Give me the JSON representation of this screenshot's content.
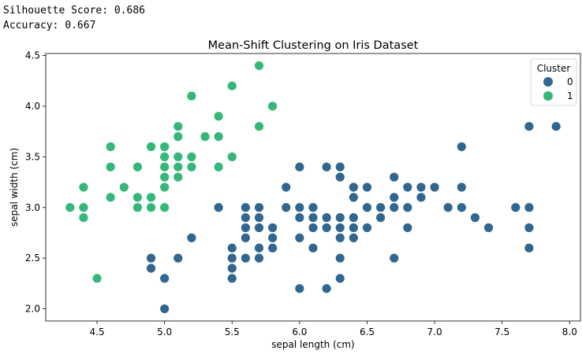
{
  "console": {
    "silhouette": "Silhouette Score: 0.686",
    "accuracy": "Accuracy: 0.667"
  },
  "colors": {
    "cluster_0": "#31678e",
    "cluster_1": "#35b779"
  },
  "chart_data": {
    "type": "scatter",
    "title": "Mean-Shift Clustering on Iris Dataset",
    "xlabel": "sepal length (cm)",
    "ylabel": "sepal width (cm)",
    "xlim": [
      4.12,
      8.08
    ],
    "ylim": [
      1.88,
      4.52
    ],
    "xticks": [
      "4.5",
      "5.0",
      "5.5",
      "6.0",
      "6.5",
      "7.0",
      "7.5",
      "8.0"
    ],
    "yticks": [
      "2.0",
      "2.5",
      "3.0",
      "3.5",
      "4.0",
      "4.5"
    ],
    "grid": false,
    "legend": {
      "title": "Cluster",
      "placement": "top-right",
      "entries": [
        "0",
        "1"
      ]
    },
    "series": [
      {
        "name": "0",
        "color": "#31678e",
        "points": [
          [
            7.0,
            3.2
          ],
          [
            6.4,
            3.2
          ],
          [
            6.9,
            3.1
          ],
          [
            5.5,
            2.3
          ],
          [
            6.5,
            2.8
          ],
          [
            5.7,
            2.8
          ],
          [
            6.3,
            3.3
          ],
          [
            4.9,
            2.4
          ],
          [
            6.6,
            2.9
          ],
          [
            5.2,
            2.7
          ],
          [
            5.0,
            2.0
          ],
          [
            5.9,
            3.0
          ],
          [
            6.0,
            2.2
          ],
          [
            6.1,
            2.9
          ],
          [
            5.6,
            2.9
          ],
          [
            6.7,
            3.1
          ],
          [
            5.6,
            3.0
          ],
          [
            5.8,
            2.7
          ],
          [
            6.2,
            2.2
          ],
          [
            5.6,
            2.5
          ],
          [
            5.9,
            3.2
          ],
          [
            6.1,
            2.8
          ],
          [
            6.3,
            2.5
          ],
          [
            6.4,
            2.9
          ],
          [
            6.6,
            3.0
          ],
          [
            6.8,
            2.8
          ],
          [
            6.7,
            3.0
          ],
          [
            6.0,
            2.9
          ],
          [
            5.7,
            2.6
          ],
          [
            5.5,
            2.4
          ],
          [
            5.8,
            2.7
          ],
          [
            6.0,
            2.7
          ],
          [
            5.4,
            3.0
          ],
          [
            6.0,
            3.4
          ],
          [
            6.3,
            2.3
          ],
          [
            5.5,
            2.5
          ],
          [
            5.5,
            2.6
          ],
          [
            6.1,
            3.0
          ],
          [
            5.8,
            2.6
          ],
          [
            5.0,
            2.3
          ],
          [
            5.6,
            2.7
          ],
          [
            5.7,
            3.0
          ],
          [
            5.7,
            2.9
          ],
          [
            6.2,
            2.9
          ],
          [
            5.1,
            2.5
          ],
          [
            6.3,
            2.9
          ],
          [
            5.8,
            2.8
          ],
          [
            7.1,
            3.0
          ],
          [
            6.5,
            3.0
          ],
          [
            7.6,
            3.0
          ],
          [
            4.9,
            2.5
          ],
          [
            7.3,
            2.9
          ],
          [
            6.7,
            2.5
          ],
          [
            7.2,
            3.6
          ],
          [
            6.5,
            3.2
          ],
          [
            6.8,
            3.0
          ],
          [
            6.4,
            2.8
          ],
          [
            7.7,
            3.8
          ],
          [
            7.7,
            2.6
          ],
          [
            6.9,
            3.2
          ],
          [
            7.7,
            2.8
          ],
          [
            7.2,
            3.2
          ],
          [
            6.2,
            2.8
          ],
          [
            6.1,
            3.0
          ],
          [
            7.4,
            2.8
          ],
          [
            7.9,
            3.8
          ],
          [
            6.4,
            3.1
          ],
          [
            6.1,
            2.6
          ],
          [
            7.7,
            3.0
          ],
          [
            6.3,
            3.4
          ],
          [
            6.0,
            3.0
          ],
          [
            5.8,
            2.7
          ],
          [
            6.8,
            3.2
          ],
          [
            6.7,
            3.3
          ],
          [
            6.2,
            3.4
          ],
          [
            5.9,
            3.0
          ],
          [
            6.5,
            2.8
          ],
          [
            6.2,
            2.9
          ],
          [
            6.9,
            3.1
          ],
          [
            6.3,
            2.8
          ],
          [
            5.6,
            2.8
          ],
          [
            6.3,
            2.7
          ],
          [
            6.4,
            2.7
          ],
          [
            7.2,
            3.0
          ],
          [
            5.7,
            2.5
          ],
          [
            6.7,
            3.1
          ],
          [
            6.0,
            2.2
          ],
          [
            6.1,
            2.8
          ]
        ]
      },
      {
        "name": "1",
        "color": "#35b779",
        "points": [
          [
            5.1,
            3.5
          ],
          [
            4.9,
            3.0
          ],
          [
            4.7,
            3.2
          ],
          [
            4.6,
            3.1
          ],
          [
            5.0,
            3.6
          ],
          [
            5.4,
            3.9
          ],
          [
            4.6,
            3.4
          ],
          [
            5.0,
            3.4
          ],
          [
            4.4,
            2.9
          ],
          [
            4.9,
            3.1
          ],
          [
            5.4,
            3.7
          ],
          [
            4.8,
            3.4
          ],
          [
            4.8,
            3.0
          ],
          [
            4.3,
            3.0
          ],
          [
            5.8,
            4.0
          ],
          [
            5.7,
            4.4
          ],
          [
            5.1,
            3.8
          ],
          [
            5.7,
            3.8
          ],
          [
            5.4,
            3.4
          ],
          [
            5.1,
            3.7
          ],
          [
            4.6,
            3.6
          ],
          [
            4.8,
            3.1
          ],
          [
            5.0,
            3.0
          ],
          [
            5.2,
            3.5
          ],
          [
            5.2,
            3.4
          ],
          [
            4.7,
            3.2
          ],
          [
            5.2,
            4.1
          ],
          [
            5.5,
            4.2
          ],
          [
            5.5,
            3.5
          ],
          [
            4.9,
            3.6
          ],
          [
            4.4,
            3.0
          ],
          [
            5.1,
            3.4
          ],
          [
            5.0,
            3.5
          ],
          [
            4.5,
            2.3
          ],
          [
            4.4,
            3.2
          ],
          [
            5.0,
            3.3
          ],
          [
            5.1,
            3.8
          ],
          [
            5.3,
            3.7
          ],
          [
            5.1,
            3.3
          ],
          [
            5.0,
            3.2
          ],
          [
            4.9,
            3.1
          ]
        ]
      }
    ]
  }
}
